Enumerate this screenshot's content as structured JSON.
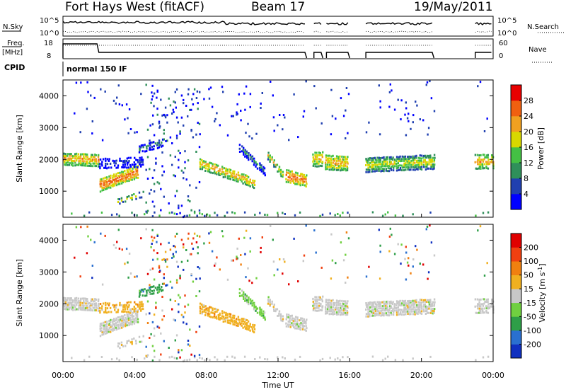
{
  "header": {
    "station": "Fort Hays West (fitACF)",
    "beam": "Beam 17",
    "date": "19/May/2011"
  },
  "status_panels": {
    "nsky_label": "N.Sky",
    "nsearch_label": "N.Search",
    "freq_label_line1": "Freq.",
    "freq_label_line2": "[MHz]",
    "nave_label": "Nave",
    "cpid_label": "CPID",
    "cpid_value": "normal 150 IF",
    "noise_ticks": [
      "10^5",
      "10^0"
    ],
    "freq_ticks": [
      "18",
      "8"
    ],
    "nave_ticks": [
      "60",
      "0"
    ]
  },
  "chart_data": [
    {
      "type": "heatmap",
      "quantity": "Power",
      "ylabel": "Slant Range [km]",
      "xlabel": "",
      "y_ticks": [
        "4000",
        "3000",
        "2000",
        "1000"
      ],
      "ylim": [
        180,
        4500
      ],
      "colorbar_label": "Power [dB]",
      "colorbar_ticks": [
        "28",
        "24",
        "20",
        "16",
        "12",
        "8",
        "4"
      ],
      "colors": [
        "#0000ff",
        "#2040b0",
        "#2f8f5a",
        "#44c044",
        "#d8d800",
        "#f0a020",
        "#f06010",
        "#e80000"
      ]
    },
    {
      "type": "heatmap",
      "quantity": "Velocity",
      "ylabel": "Slant Range [km]",
      "xlabel": "Time UT",
      "x_ticks": [
        "00:00",
        "04:00",
        "08:00",
        "12:00",
        "16:00",
        "20:00",
        "00:00"
      ],
      "y_ticks": [
        "4000",
        "3000",
        "2000",
        "1000"
      ],
      "ylim": [
        180,
        4500
      ],
      "colorbar_label": "Velocity [m s^-1]",
      "colorbar_ticks": [
        "200",
        "100",
        "50",
        "15",
        "-15",
        "-50",
        "-100",
        "-200"
      ],
      "colors": [
        "#1030c0",
        "#2a70d0",
        "#2e9e48",
        "#70d040",
        "#c8c8c8",
        "#f0b020",
        "#f08010",
        "#f04010",
        "#e00000"
      ]
    }
  ]
}
